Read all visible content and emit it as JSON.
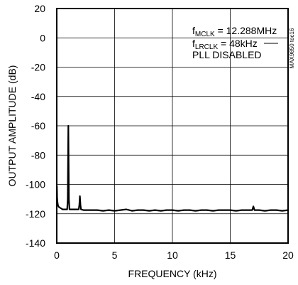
{
  "chart_data": {
    "type": "line",
    "title": "",
    "xlabel": "FREQUENCY (kHz)",
    "ylabel": "OUTPUT AMPLITUDE (dB)",
    "xlim": [
      0,
      20
    ],
    "ylim": [
      -140,
      20
    ],
    "x_ticks": [
      "0",
      "5",
      "10",
      "15",
      "20"
    ],
    "y_ticks": [
      "20",
      "0",
      "-20",
      "-40",
      "-60",
      "-80",
      "-100",
      "-120",
      "-140"
    ],
    "grid": true,
    "annotations": {
      "line1": {
        "main": "f",
        "sub": "MCLK",
        "rest": " = 12.288MHz"
      },
      "line2": {
        "main": "f",
        "sub": "LRCLK",
        "rest": " = 48kHz"
      },
      "line3": "PLL DISABLED"
    },
    "side_label": "MAX9850 toc16",
    "series": [
      {
        "color": "#000000",
        "x": [
          0.01,
          0.03,
          0.06,
          0.1,
          0.15,
          0.2,
          0.3,
          0.4,
          0.5,
          0.6,
          0.7,
          0.8,
          0.9,
          0.95,
          1.0,
          1.05,
          1.1,
          1.2,
          1.4,
          1.6,
          1.8,
          1.9,
          1.95,
          2.0,
          2.05,
          2.1,
          2.3,
          2.6,
          3.0,
          3.5,
          4.0,
          4.5,
          5.0,
          5.5,
          6.0,
          6.5,
          7.0,
          7.5,
          8.0,
          8.5,
          9.0,
          9.5,
          10.0,
          10.5,
          11.0,
          11.5,
          12.0,
          12.5,
          13.0,
          13.5,
          14.0,
          14.5,
          15.0,
          15.5,
          16.0,
          16.5,
          16.9,
          17.0,
          17.1,
          17.5,
          18.0,
          18.5,
          19.0,
          19.5,
          20.0
        ],
        "y": [
          -101,
          -109,
          -112,
          -114,
          -115,
          -115.5,
          -116,
          -116.5,
          -117,
          -117,
          -117,
          -117,
          -117,
          -110,
          -60,
          -110,
          -117,
          -117,
          -117,
          -117,
          -117,
          -117,
          -114,
          -108,
          -114,
          -117,
          -117.5,
          -117.5,
          -117.5,
          -117.5,
          -118,
          -117.5,
          -118,
          -117.5,
          -117,
          -118,
          -117.5,
          -117.5,
          -118,
          -117.5,
          -118,
          -117.5,
          -117.5,
          -118,
          -117.5,
          -117.5,
          -118,
          -117.5,
          -117.5,
          -118,
          -117.5,
          -117.5,
          -117.5,
          -118,
          -117.5,
          -117.5,
          -117.5,
          -115,
          -117.5,
          -117.5,
          -118,
          -117.5,
          -117.5,
          -118,
          -117.5
        ]
      }
    ]
  }
}
